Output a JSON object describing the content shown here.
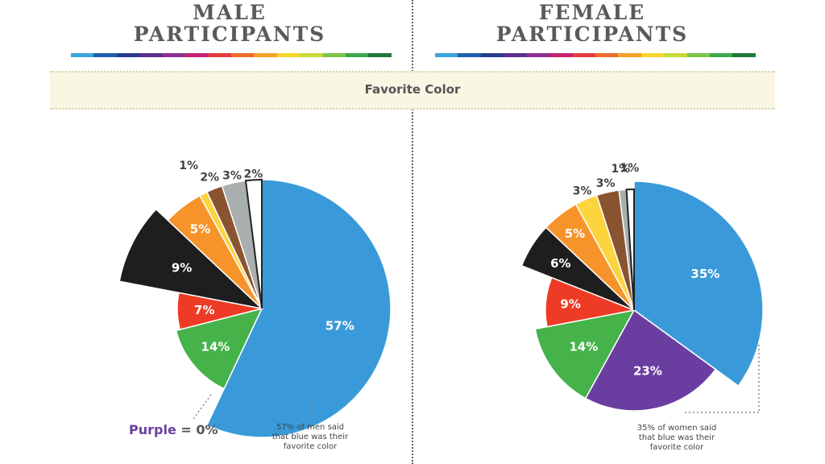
{
  "titles": {
    "male": [
      "MALE",
      "PARTICIPANTS"
    ],
    "female": [
      "FEMALE",
      "PARTICIPANTS"
    ]
  },
  "banner": "Favorite Color",
  "rainbow_colors": [
    "#3aa6de",
    "#1f5fb0",
    "#283c8e",
    "#5b2f8f",
    "#8e2f8f",
    "#c2246e",
    "#e23c3c",
    "#ee6b2e",
    "#f3a129",
    "#f6d72b",
    "#c8d93a",
    "#7cc446",
    "#3aa84a",
    "#1f7a3a"
  ],
  "male_note": [
    "57% of men said",
    "that blue was their",
    "favorite color"
  ],
  "female_note": [
    "35% of women said",
    "that blue was their",
    "favorite color"
  ],
  "purple_note": {
    "word": "Purple",
    "rest": " = 0%"
  },
  "chart_data": [
    {
      "type": "pie",
      "title": "MALE PARTICIPANTS",
      "subtitle": "Favorite Color",
      "slices": [
        {
          "label": "57%",
          "value": 57,
          "color": "#3a9ad9",
          "name": "blue"
        },
        {
          "label": "14%",
          "value": 14,
          "color": "#46b24a",
          "name": "green"
        },
        {
          "label": "7%",
          "value": 7,
          "color": "#ed3b25",
          "name": "red"
        },
        {
          "label": "9%",
          "value": 9,
          "color": "#1e1e1e",
          "name": "black"
        },
        {
          "label": "5%",
          "value": 5,
          "color": "#f6942b",
          "name": "orange"
        },
        {
          "label": "1%",
          "value": 1,
          "color": "#fcd43e",
          "name": "yellow"
        },
        {
          "label": "2%",
          "value": 2,
          "color": "#8a5431",
          "name": "brown"
        },
        {
          "label": "3%",
          "value": 3,
          "color": "#a9aeae",
          "name": "gray"
        },
        {
          "label": "2%",
          "value": 2,
          "color": "#ffffff",
          "name": "white"
        }
      ]
    },
    {
      "type": "pie",
      "title": "FEMALE PARTICIPANTS",
      "subtitle": "Favorite Color",
      "slices": [
        {
          "label": "35%",
          "value": 35,
          "color": "#3a9ad9",
          "name": "blue"
        },
        {
          "label": "23%",
          "value": 23,
          "color": "#6a3ea1",
          "name": "purple"
        },
        {
          "label": "14%",
          "value": 14,
          "color": "#46b24a",
          "name": "green"
        },
        {
          "label": "9%",
          "value": 9,
          "color": "#ed3b25",
          "name": "red"
        },
        {
          "label": "6%",
          "value": 6,
          "color": "#1e1e1e",
          "name": "black"
        },
        {
          "label": "5%",
          "value": 5,
          "color": "#f6942b",
          "name": "orange"
        },
        {
          "label": "3%",
          "value": 3,
          "color": "#fcd43e",
          "name": "yellow"
        },
        {
          "label": "3%",
          "value": 3,
          "color": "#8a5431",
          "name": "brown"
        },
        {
          "label": "1%",
          "value": 1,
          "color": "#a9aeae",
          "name": "gray"
        },
        {
          "label": "1%",
          "value": 1,
          "color": "#ffffff",
          "name": "white"
        }
      ]
    }
  ]
}
